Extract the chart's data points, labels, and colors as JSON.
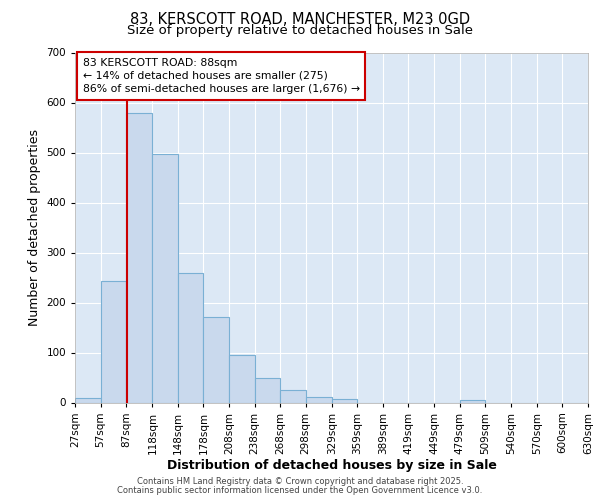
{
  "title1": "83, KERSCOTT ROAD, MANCHESTER, M23 0GD",
  "title2": "Size of property relative to detached houses in Sale",
  "xlabel": "Distribution of detached houses by size in Sale",
  "ylabel": "Number of detached properties",
  "bin_edges": [
    27,
    57,
    87,
    118,
    148,
    178,
    208,
    238,
    268,
    298,
    329,
    359,
    389,
    419,
    449,
    479,
    509,
    540,
    570,
    600,
    630
  ],
  "bar_heights": [
    10,
    243,
    580,
    497,
    260,
    172,
    95,
    50,
    25,
    12,
    8,
    0,
    0,
    0,
    0,
    5,
    0,
    0,
    0,
    0
  ],
  "bar_color": "#c9d9ed",
  "bar_edge_color": "#7ab0d4",
  "vline_x": 88,
  "vline_color": "#cc0000",
  "annotation_text": "83 KERSCOTT ROAD: 88sqm\n← 14% of detached houses are smaller (275)\n86% of semi-detached houses are larger (1,676) →",
  "annotation_box_color": "#cc0000",
  "annotation_text_color": "#000000",
  "ylim": [
    0,
    700
  ],
  "yticks": [
    0,
    100,
    200,
    300,
    400,
    500,
    600,
    700
  ],
  "fig_bg_color": "#ffffff",
  "plot_bg_color": "#dce8f5",
  "grid_color": "#ffffff",
  "footer1": "Contains HM Land Registry data © Crown copyright and database right 2025.",
  "footer2": "Contains public sector information licensed under the Open Government Licence v3.0."
}
